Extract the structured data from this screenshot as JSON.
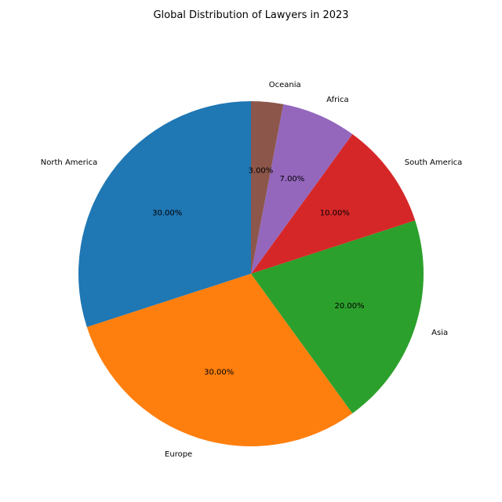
{
  "chart_data": {
    "type": "pie",
    "title": "Global Distribution of Lawyers in 2023",
    "categories": [
      "North America",
      "Europe",
      "Asia",
      "South America",
      "Africa",
      "Oceania"
    ],
    "values": [
      30,
      30,
      20,
      10,
      7,
      3
    ],
    "percent_labels": [
      "30.00%",
      "30.00%",
      "20.00%",
      "10.00%",
      "7.00%",
      "3.00%"
    ],
    "colors": [
      "#1f77b4",
      "#ff7f0e",
      "#2ca02c",
      "#d62728",
      "#9467bd",
      "#8c564b"
    ],
    "start_angle_deg": 90,
    "direction": "counterclockwise"
  }
}
